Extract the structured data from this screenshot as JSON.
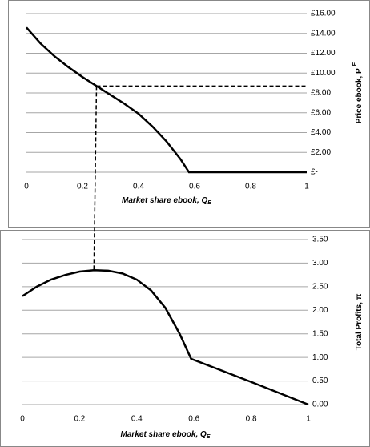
{
  "chart_data": [
    {
      "type": "line",
      "x_label": "Market share ebook, Q",
      "x_label_sub": "E",
      "y_label": "Price ebook, P",
      "y_label_sup": "E",
      "xlim": [
        0,
        1
      ],
      "xticks": [
        0,
        0.2,
        0.4,
        0.6,
        0.8,
        1
      ],
      "ylim": [
        0,
        16
      ],
      "yticks": [
        {
          "value": 0,
          "label": "£-"
        },
        {
          "value": 2,
          "label": "£2.00"
        },
        {
          "value": 4,
          "label": "£4.00"
        },
        {
          "value": 6,
          "label": "£6.00"
        },
        {
          "value": 8,
          "label": "£8.00"
        },
        {
          "value": 10,
          "label": "£10.00"
        },
        {
          "value": 12,
          "label": "£12.00"
        },
        {
          "value": 14,
          "label": "£14.00"
        },
        {
          "value": 16,
          "label": "£16.00"
        }
      ],
      "grid": true,
      "guide": {
        "x": 0.25,
        "y": 8.7
      },
      "series": [
        {
          "color": "#000000",
          "x": [
            0,
            0.05,
            0.1,
            0.15,
            0.2,
            0.25,
            0.3,
            0.35,
            0.4,
            0.45,
            0.5,
            0.55,
            0.58,
            0.6,
            0.8,
            1
          ],
          "values": [
            14.6,
            13.0,
            11.7,
            10.6,
            9.6,
            8.7,
            7.8,
            6.9,
            5.9,
            4.6,
            3.1,
            1.3,
            0,
            0,
            0,
            0
          ]
        }
      ]
    },
    {
      "type": "line",
      "x_label": "Market share ebook, Q",
      "x_label_sub": "E",
      "y_label": "Total Profits, π",
      "xlim": [
        0,
        1
      ],
      "xticks": [
        0,
        0.2,
        0.4,
        0.6,
        0.8,
        1
      ],
      "ylim": [
        0,
        3.5
      ],
      "yticks": [
        {
          "value": 0,
          "label": "0.00"
        },
        {
          "value": 0.5,
          "label": "0.50"
        },
        {
          "value": 1,
          "label": "1.00"
        },
        {
          "value": 1.5,
          "label": "1.50"
        },
        {
          "value": 2,
          "label": "2.00"
        },
        {
          "value": 2.5,
          "label": "2.50"
        },
        {
          "value": 3,
          "label": "3.00"
        },
        {
          "value": 3.5,
          "label": "3.50"
        }
      ],
      "grid": true,
      "guide": {
        "x": 0.25,
        "y": 2.85
      },
      "series": [
        {
          "color": "#000000",
          "x": [
            0,
            0.05,
            0.1,
            0.15,
            0.2,
            0.25,
            0.3,
            0.35,
            0.4,
            0.45,
            0.5,
            0.55,
            0.59,
            0.8,
            1
          ],
          "values": [
            2.3,
            2.5,
            2.65,
            2.75,
            2.82,
            2.85,
            2.84,
            2.78,
            2.65,
            2.42,
            2.05,
            1.5,
            0.97,
            0.48,
            0
          ]
        }
      ]
    }
  ]
}
